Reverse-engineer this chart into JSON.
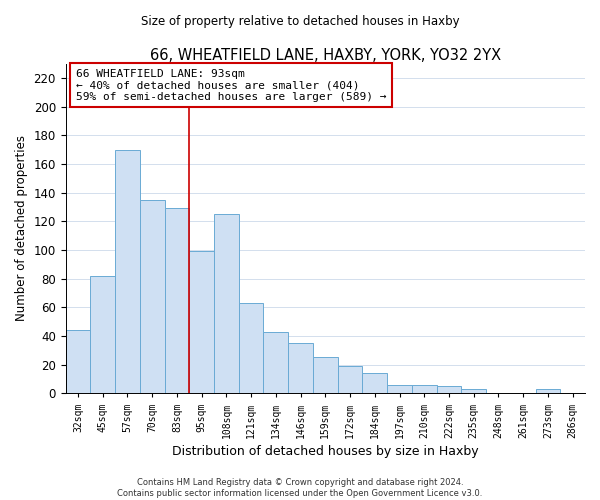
{
  "title1": "66, WHEATFIELD LANE, HAXBY, YORK, YO32 2YX",
  "title2": "Size of property relative to detached houses in Haxby",
  "xlabel": "Distribution of detached houses by size in Haxby",
  "ylabel": "Number of detached properties",
  "bar_color": "#cfe0f3",
  "bar_edge_color": "#6aaad4",
  "bin_labels": [
    "32sqm",
    "45sqm",
    "57sqm",
    "70sqm",
    "83sqm",
    "95sqm",
    "108sqm",
    "121sqm",
    "134sqm",
    "146sqm",
    "159sqm",
    "172sqm",
    "184sqm",
    "197sqm",
    "210sqm",
    "222sqm",
    "235sqm",
    "248sqm",
    "261sqm",
    "273sqm",
    "286sqm"
  ],
  "bar_heights": [
    44,
    82,
    170,
    135,
    129,
    99,
    125,
    63,
    43,
    35,
    25,
    19,
    14,
    6,
    6,
    5,
    3,
    0,
    0,
    3,
    0
  ],
  "ylim": [
    0,
    230
  ],
  "yticks": [
    0,
    20,
    40,
    60,
    80,
    100,
    120,
    140,
    160,
    180,
    200,
    220
  ],
  "vline_x": 5,
  "vline_color": "#cc0000",
  "annotation_title": "66 WHEATFIELD LANE: 93sqm",
  "annotation_line1": "← 40% of detached houses are smaller (404)",
  "annotation_line2": "59% of semi-detached houses are larger (589) →",
  "annotation_box_color": "#ffffff",
  "annotation_box_edge": "#cc0000",
  "footer1": "Contains HM Land Registry data © Crown copyright and database right 2024.",
  "footer2": "Contains public sector information licensed under the Open Government Licence v3.0."
}
